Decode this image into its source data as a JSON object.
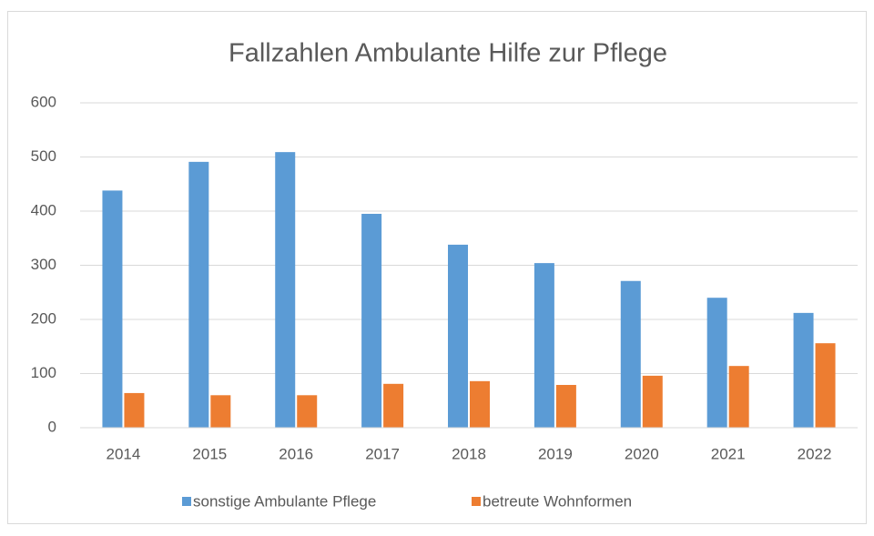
{
  "chart_data": {
    "type": "bar",
    "title": "Fallzahlen Ambulante Hilfe zur Pflege",
    "categories": [
      "2014",
      "2015",
      "2016",
      "2017",
      "2018",
      "2019",
      "2020",
      "2021",
      "2022"
    ],
    "series": [
      {
        "name": "sonstige Ambulante Pflege",
        "color": "#5b9bd5",
        "values": [
          438,
          491,
          509,
          395,
          338,
          304,
          271,
          240,
          212
        ]
      },
      {
        "name": "betreute Wohnformen",
        "color": "#ed7d31",
        "values": [
          64,
          60,
          60,
          81,
          86,
          79,
          96,
          114,
          156
        ]
      }
    ],
    "ylim": [
      0,
      600
    ],
    "yticks": [
      0,
      100,
      200,
      300,
      400,
      500,
      600
    ],
    "grid": true,
    "legend": "bottom"
  }
}
